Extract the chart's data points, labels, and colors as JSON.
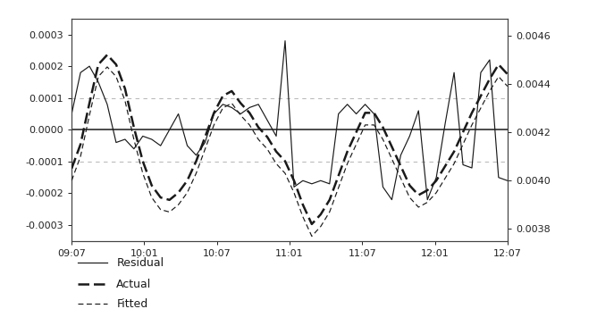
{
  "x_labels": [
    "09:07",
    "10:01",
    "10:07",
    "11:01",
    "11:07",
    "12:01",
    "12:07"
  ],
  "n_points": 50,
  "residual": [
    5e-05,
    0.00018,
    0.0002,
    0.00015,
    8e-05,
    -4e-05,
    -3e-05,
    -6e-05,
    -2e-05,
    -3e-05,
    -5e-05,
    0.0,
    5e-05,
    -5e-05,
    -8e-05,
    -4e-05,
    5e-05,
    8e-05,
    7e-05,
    5e-05,
    7e-05,
    8e-05,
    3e-05,
    -2e-05,
    0.00028,
    -0.00018,
    -0.00016,
    -0.00017,
    -0.00016,
    -0.00017,
    5e-05,
    8e-05,
    5e-05,
    8e-05,
    5e-05,
    -0.00018,
    -0.00022,
    -8e-05,
    -2e-05,
    6e-05,
    -0.00022,
    -0.00015,
    2e-05,
    0.00018,
    -0.00011,
    -0.00012,
    0.00018,
    0.00022,
    -0.00015,
    -0.00016
  ],
  "actual": [
    0.00405,
    0.00415,
    0.00432,
    0.00448,
    0.00452,
    0.00448,
    0.00438,
    0.00422,
    0.00408,
    0.00398,
    0.00393,
    0.00392,
    0.00395,
    0.004,
    0.00408,
    0.00418,
    0.00428,
    0.00435,
    0.00437,
    0.00432,
    0.00428,
    0.00422,
    0.00418,
    0.00412,
    0.00408,
    0.004,
    0.0039,
    0.00382,
    0.00386,
    0.00392,
    0.00402,
    0.00412,
    0.0042,
    0.00428,
    0.00428,
    0.00422,
    0.00414,
    0.00406,
    0.00398,
    0.00394,
    0.00396,
    0.004,
    0.00406,
    0.00412,
    0.0042,
    0.00428,
    0.00435,
    0.00442,
    0.00448,
    0.00444
  ],
  "fitted": [
    0.004,
    0.0041,
    0.00427,
    0.00443,
    0.00447,
    0.00443,
    0.00433,
    0.00417,
    0.00403,
    0.00393,
    0.00388,
    0.00387,
    0.0039,
    0.00395,
    0.00403,
    0.00413,
    0.00423,
    0.0043,
    0.00432,
    0.00427,
    0.00423,
    0.00417,
    0.00413,
    0.00407,
    0.00403,
    0.00395,
    0.00385,
    0.00377,
    0.00381,
    0.00387,
    0.00397,
    0.00407,
    0.00415,
    0.00423,
    0.00423,
    0.00417,
    0.00409,
    0.00401,
    0.00393,
    0.00389,
    0.00391,
    0.00395,
    0.00401,
    0.00407,
    0.00415,
    0.00423,
    0.0043,
    0.00437,
    0.00443,
    0.00439
  ],
  "ylim_left": [
    -0.00035,
    0.00035
  ],
  "ylim_right": [
    0.00375,
    0.00467
  ],
  "yticks_left": [
    -0.0003,
    -0.0002,
    -0.0001,
    0.0,
    0.0001,
    0.0002,
    0.0003
  ],
  "yticks_right": [
    0.0038,
    0.004,
    0.0042,
    0.0044,
    0.0046
  ],
  "bg_color": "#ffffff",
  "line_color": "#1a1a1a",
  "grid_color": "#bbbbbb",
  "figsize": [
    6.68,
    3.46
  ],
  "dpi": 100
}
